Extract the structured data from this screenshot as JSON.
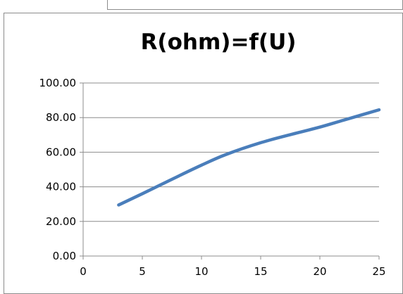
{
  "chart_data": {
    "type": "line",
    "title": "R(ohm)=f(U)",
    "xlabel": "",
    "ylabel": "",
    "xlim": [
      0,
      25
    ],
    "ylim": [
      0,
      100
    ],
    "xticks": [
      "0",
      "5",
      "10",
      "15",
      "20",
      "25"
    ],
    "yticks": [
      "0.00",
      "20.00",
      "40.00",
      "60.00",
      "80.00",
      "100.00"
    ],
    "grid": "horizontal",
    "legend": "none",
    "series": [
      {
        "color": "#4a7ebb",
        "x": [
          3,
          5,
          8,
          10,
          12,
          15,
          18,
          20,
          22,
          25
        ],
        "y": [
          29.5,
          36,
          46,
          52.5,
          58.5,
          65.5,
          71,
          74.5,
          78.5,
          84.5
        ]
      }
    ]
  }
}
